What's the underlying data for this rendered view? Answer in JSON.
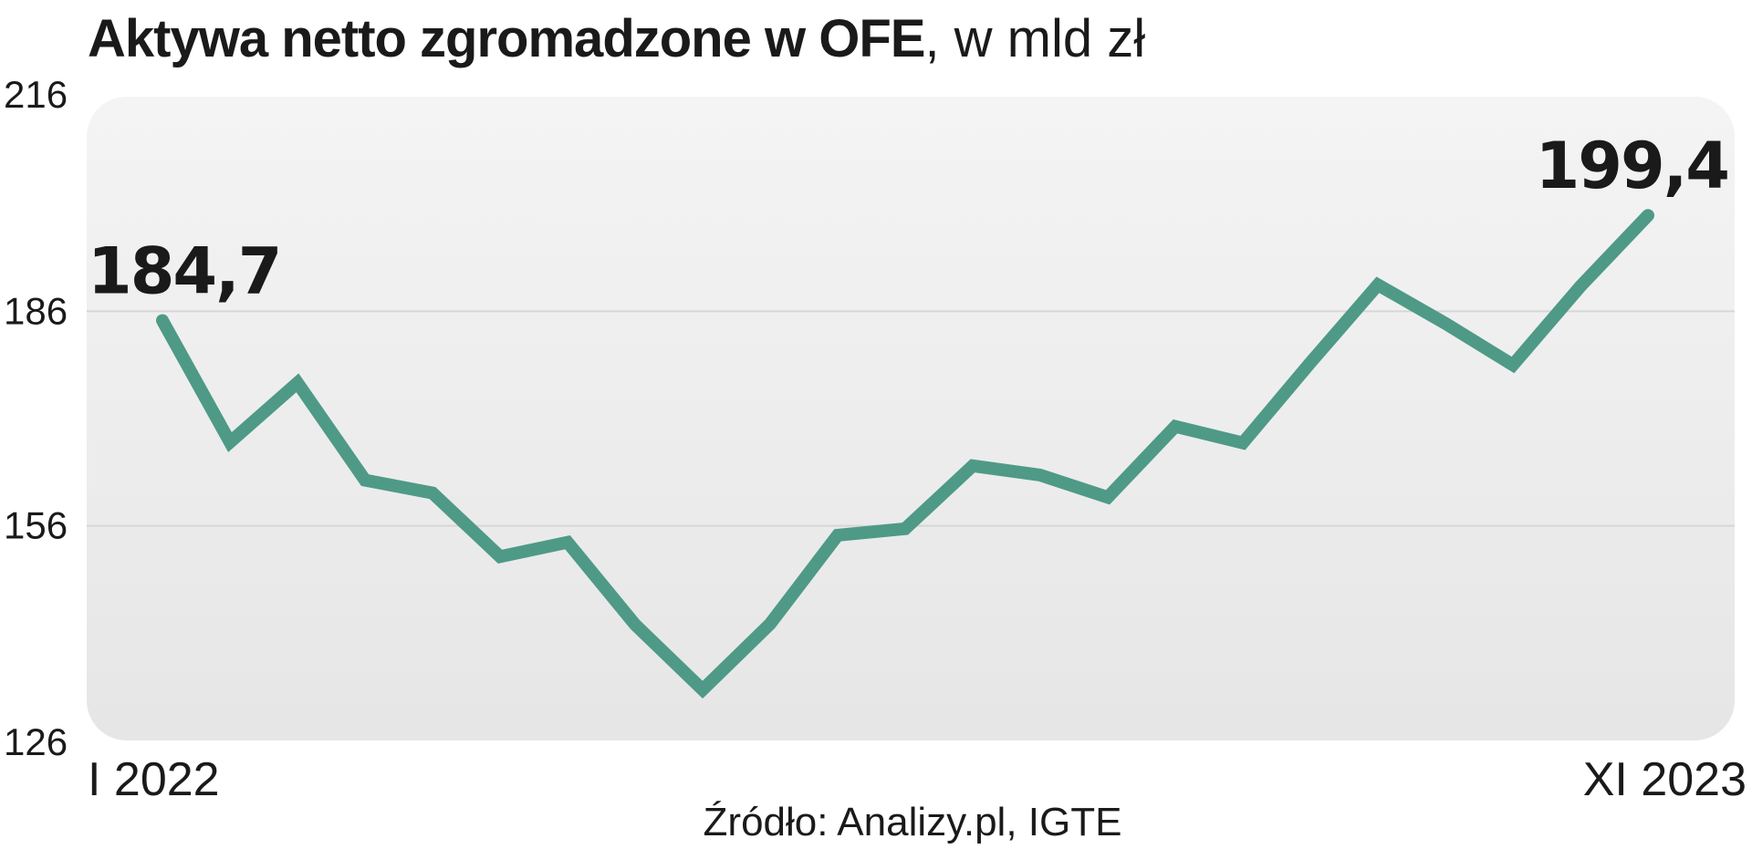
{
  "chart_data": {
    "type": "line",
    "title": "Aktywa netto zgromadzone w OFE",
    "subtitle": ", w mld zł",
    "source": "Źródło: Analizy.pl, IGTE",
    "ylim": [
      126,
      216
    ],
    "yticks": [
      "126",
      "156",
      "186",
      "216"
    ],
    "ytick_values": [
      126,
      156,
      186,
      216
    ],
    "x_labels": {
      "start": "I 2022",
      "end": "XI 2023"
    },
    "grid": true,
    "line_color": "#4e9a87",
    "series": [
      {
        "values": [
          184.7,
          167.7,
          176.0,
          162.4,
          160.6,
          151.7,
          153.7,
          142.2,
          133.1,
          142.3,
          154.7,
          155.6,
          164.4,
          163.1,
          160.0,
          169.9,
          167.6,
          178.8,
          189.7,
          184.3,
          178.5,
          189.5,
          199.4
        ],
        "labels": [
          "184,7",
          "",
          "",
          "",
          "",
          "",
          "",
          "",
          "",
          "",
          "",
          "",
          "",
          "",
          "",
          "",
          "",
          "",
          "",
          "",
          "",
          "",
          "199,4"
        ]
      }
    ]
  }
}
